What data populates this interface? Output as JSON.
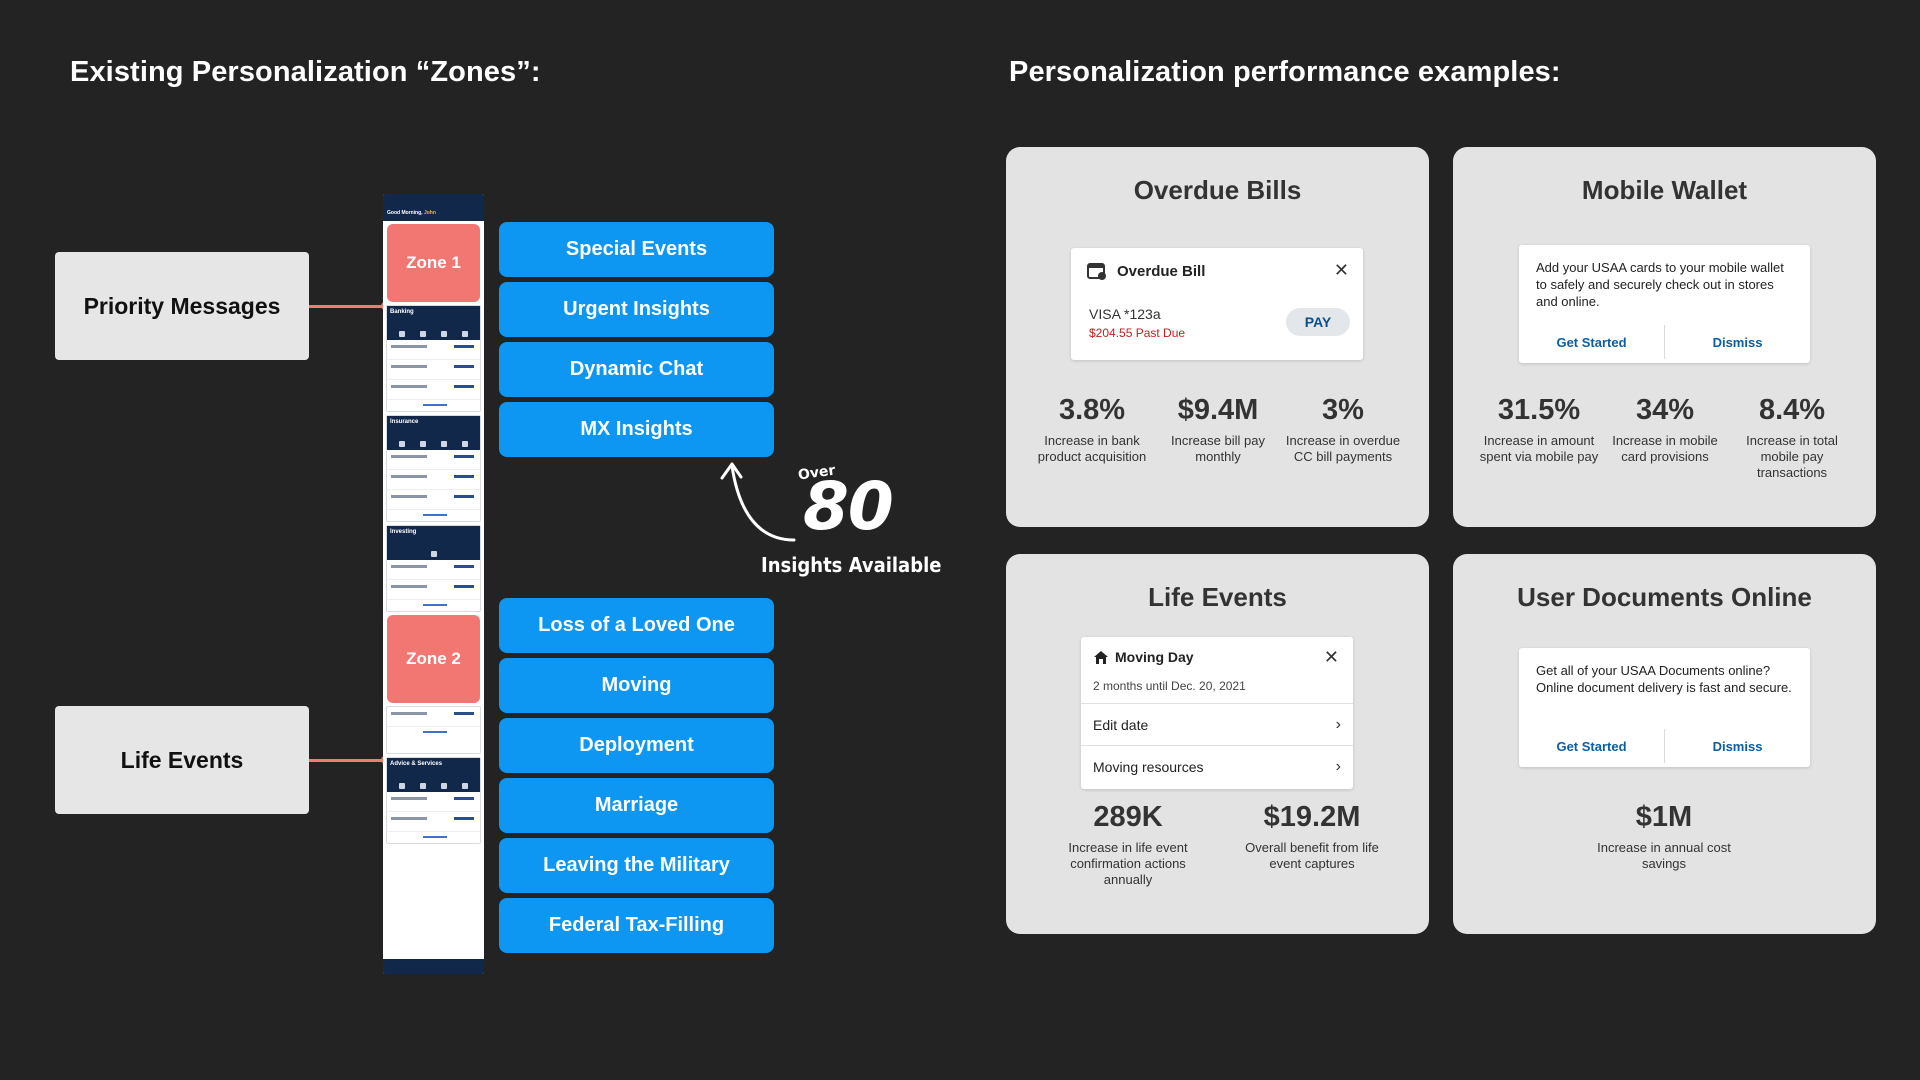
{
  "left_title": "Existing Personalization “Zones”:",
  "right_title": "Personalization performance examples:",
  "zones": {
    "priority_label": "Priority Messages",
    "life_label": "Life Events"
  },
  "phone": {
    "greeting": "Good Morning,",
    "user": "John",
    "zone1": "Zone 1",
    "zone2": "Zone 2",
    "banking": "Banking",
    "insurance": "Insurance",
    "investing": "Investing",
    "advice": "Advice & Services"
  },
  "insights_top": [
    "Special Events",
    "Urgent Insights",
    "Dynamic Chat",
    "MX Insights"
  ],
  "insights_bottom": [
    "Loss of a Loved One",
    "Moving",
    "Deployment",
    "Marriage",
    "Leaving the Military",
    "Federal Tax-Filling"
  ],
  "callout": {
    "over": "Over",
    "number": "80",
    "text": "Insights Available"
  },
  "cards": {
    "overdue": {
      "title": "Overdue Bills",
      "mini_title": "Overdue Bill",
      "card_name": "VISA *123a",
      "past_due": "$204.55 Past Due",
      "pay": "PAY",
      "stats": [
        {
          "value": "3.8%",
          "label": "Increase in bank product acquisition"
        },
        {
          "value": "$9.4M",
          "label": "Increase  bill pay monthly"
        },
        {
          "value": "3%",
          "label": "Increase in overdue CC bill payments"
        }
      ]
    },
    "wallet": {
      "title": "Mobile Wallet",
      "message": "Add your USAA cards to your mobile wallet to safely and securely check out in stores and online.",
      "primary": "Get Started",
      "secondary": "Dismiss",
      "stats": [
        {
          "value": "31.5%",
          "label": "Increase in amount spent via mobile pay"
        },
        {
          "value": "34%",
          "label": "Increase in mobile card provisions"
        },
        {
          "value": "8.4%",
          "label": "Increase in total mobile pay transactions"
        }
      ]
    },
    "life": {
      "title": "Life Events",
      "mini_title": "Moving Day",
      "subtitle": "2 months until Dec. 20, 2021",
      "row1": "Edit date",
      "row2": "Moving resources",
      "stats": [
        {
          "value": "289K",
          "label": "Increase in life event confirmation actions annually"
        },
        {
          "value": "$19.2M",
          "label": "Overall benefit from life event captures"
        }
      ]
    },
    "docs": {
      "title": "User Documents Online",
      "message": "Get all of your USAA Documents online? Online document delivery is fast and secure.",
      "primary": "Get Started",
      "secondary": "Dismiss",
      "stats": [
        {
          "value": "$1M",
          "label": "Increase  in annual cost savings"
        }
      ]
    }
  }
}
